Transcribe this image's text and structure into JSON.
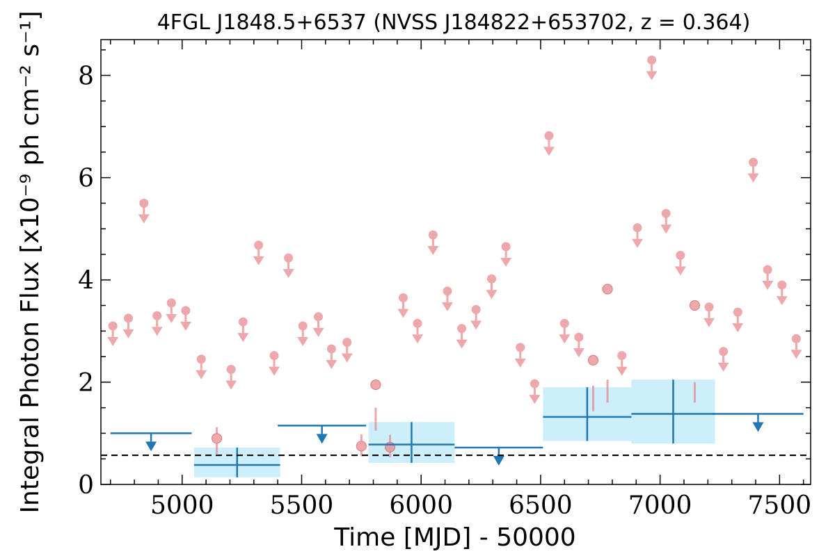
{
  "chart_data": {
    "type": "scatter",
    "title": "4FGL J1848.5+6537 (NVSS J184822+653702, z = 0.364)",
    "xlabel": "Time [MJD] - 50000",
    "ylabel": "Integral Photon Flux [x10⁻⁹ ph cm⁻² s⁻¹]",
    "xlim": [
      4660,
      7630
    ],
    "ylim": [
      0,
      8.7
    ],
    "xticks": [
      5000,
      5500,
      6000,
      6500,
      7000,
      7500
    ],
    "xtick_labels": [
      "5000",
      "5500",
      "6000",
      "6500",
      "7000",
      "7500"
    ],
    "yticks": [
      0,
      2,
      4,
      6,
      8
    ],
    "ytick_labels": [
      "0",
      "2",
      "4",
      "6",
      "8"
    ],
    "reference_line": {
      "y": 0.57,
      "style": "dashed",
      "color": "#000000"
    },
    "colors": {
      "monthly": "#e8868a",
      "yearly": "#1f77b4",
      "yearly_band": "#cdeefc"
    },
    "series": [
      {
        "kind": "monthly_upper_limits",
        "x": [
          4710,
          4775,
          4840,
          4895,
          4955,
          5015,
          5080,
          5205,
          5255,
          5320,
          5385,
          5445,
          5505,
          5570,
          5625,
          5690,
          5925,
          5985,
          6050,
          6110,
          6170,
          6230,
          6295,
          6355,
          6415,
          6475,
          6535,
          6600,
          6660,
          6840,
          6905,
          6965,
          7025,
          7085,
          7205,
          7265,
          7325,
          7390,
          7450,
          7510,
          7570
        ],
        "y": [
          3.1,
          3.25,
          5.5,
          3.3,
          3.55,
          3.4,
          2.45,
          2.25,
          3.18,
          4.68,
          2.52,
          4.43,
          3.1,
          3.28,
          2.65,
          2.78,
          3.65,
          3.15,
          4.88,
          3.78,
          3.05,
          3.42,
          4.02,
          4.65,
          2.68,
          1.97,
          6.82,
          3.15,
          2.88,
          2.52,
          5.02,
          8.3,
          5.3,
          4.48,
          3.47,
          2.6,
          3.37,
          6.3,
          4.2,
          3.9,
          2.85
        ]
      },
      {
        "kind": "monthly_detections",
        "x": [
          5145,
          5750,
          5810,
          5870,
          6720,
          6780,
          7145
        ],
        "y": [
          0.9,
          0.75,
          1.95,
          0.73,
          2.43,
          3.82,
          3.5
        ],
        "yerr_low": [
          0.6,
          0.55,
          1.05,
          0.53,
          1.43,
          1.6,
          1.6
        ],
        "yerr_high": [
          1.12,
          0.98,
          1.5,
          0.97,
          1.93,
          2.05,
          2.0
        ]
      },
      {
        "kind": "yearly_upper_limits",
        "x_start": [
          4700,
          5400,
          6140,
          7220
        ],
        "x_end": [
          5040,
          5770,
          6510,
          7600
        ],
        "y": [
          1.0,
          1.15,
          0.72,
          1.38
        ]
      },
      {
        "kind": "yearly_detections",
        "x_start": [
          5050,
          5780,
          6510,
          6880
        ],
        "x_end": [
          5410,
          6140,
          6880,
          7230
        ],
        "x": [
          5230,
          5960,
          6695,
          7055
        ],
        "y": [
          0.38,
          0.78,
          1.32,
          1.38
        ],
        "y_low": [
          0.14,
          0.42,
          0.85,
          0.8
        ],
        "y_high": [
          0.72,
          1.22,
          1.9,
          2.05
        ]
      }
    ]
  }
}
